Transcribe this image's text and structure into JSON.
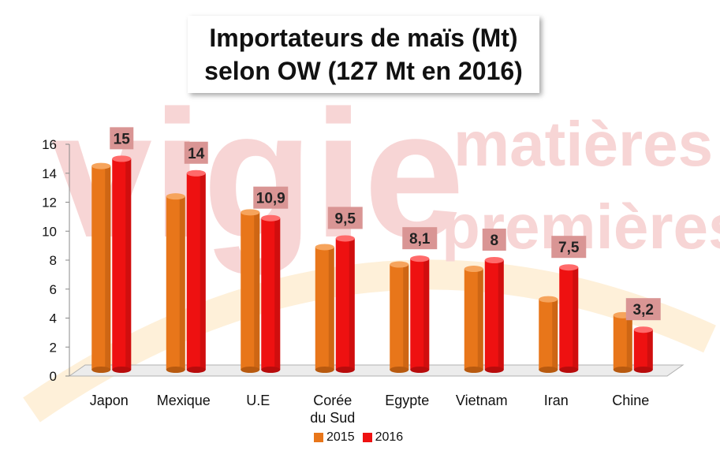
{
  "title": {
    "line1": "Importateurs de maïs (Mt)",
    "line2": "selon OW (127 Mt en 2016)"
  },
  "watermark": {
    "line1": "vigie",
    "line2": "matières",
    "line3": "premières"
  },
  "colors": {
    "series_2015": "#e8761a",
    "series_2016": "#ee1111",
    "data_label_bg": "#d99594",
    "watermark": "#f7d5d5",
    "watermark_arc": "#fde6c0"
  },
  "chart_data": {
    "type": "bar",
    "title": "Importateurs de maïs (Mt) selon OW (127 Mt en 2016)",
    "categories": [
      "Japon",
      "Mexique",
      "U.E",
      "Corée du Sud",
      "Egypte",
      "Vietnam",
      "Iran",
      "Chine"
    ],
    "series": [
      {
        "name": "2015",
        "values": [
          14.5,
          12.4,
          11.3,
          8.9,
          7.7,
          7.4,
          5.3,
          4.2
        ]
      },
      {
        "name": "2016",
        "values": [
          15,
          14,
          10.9,
          9.5,
          8.1,
          8,
          7.5,
          3.2
        ]
      }
    ],
    "data_labels": [
      "15",
      "14",
      "10,9",
      "9,5",
      "8,1",
      "8",
      "7,5",
      "3,2"
    ],
    "y_ticks": [
      "0",
      "2",
      "4",
      "6",
      "8",
      "10",
      "12",
      "14",
      "16"
    ],
    "ylim": [
      0,
      16
    ],
    "xlabel": "",
    "ylabel": "",
    "legend_position": "bottom",
    "grid": false
  }
}
